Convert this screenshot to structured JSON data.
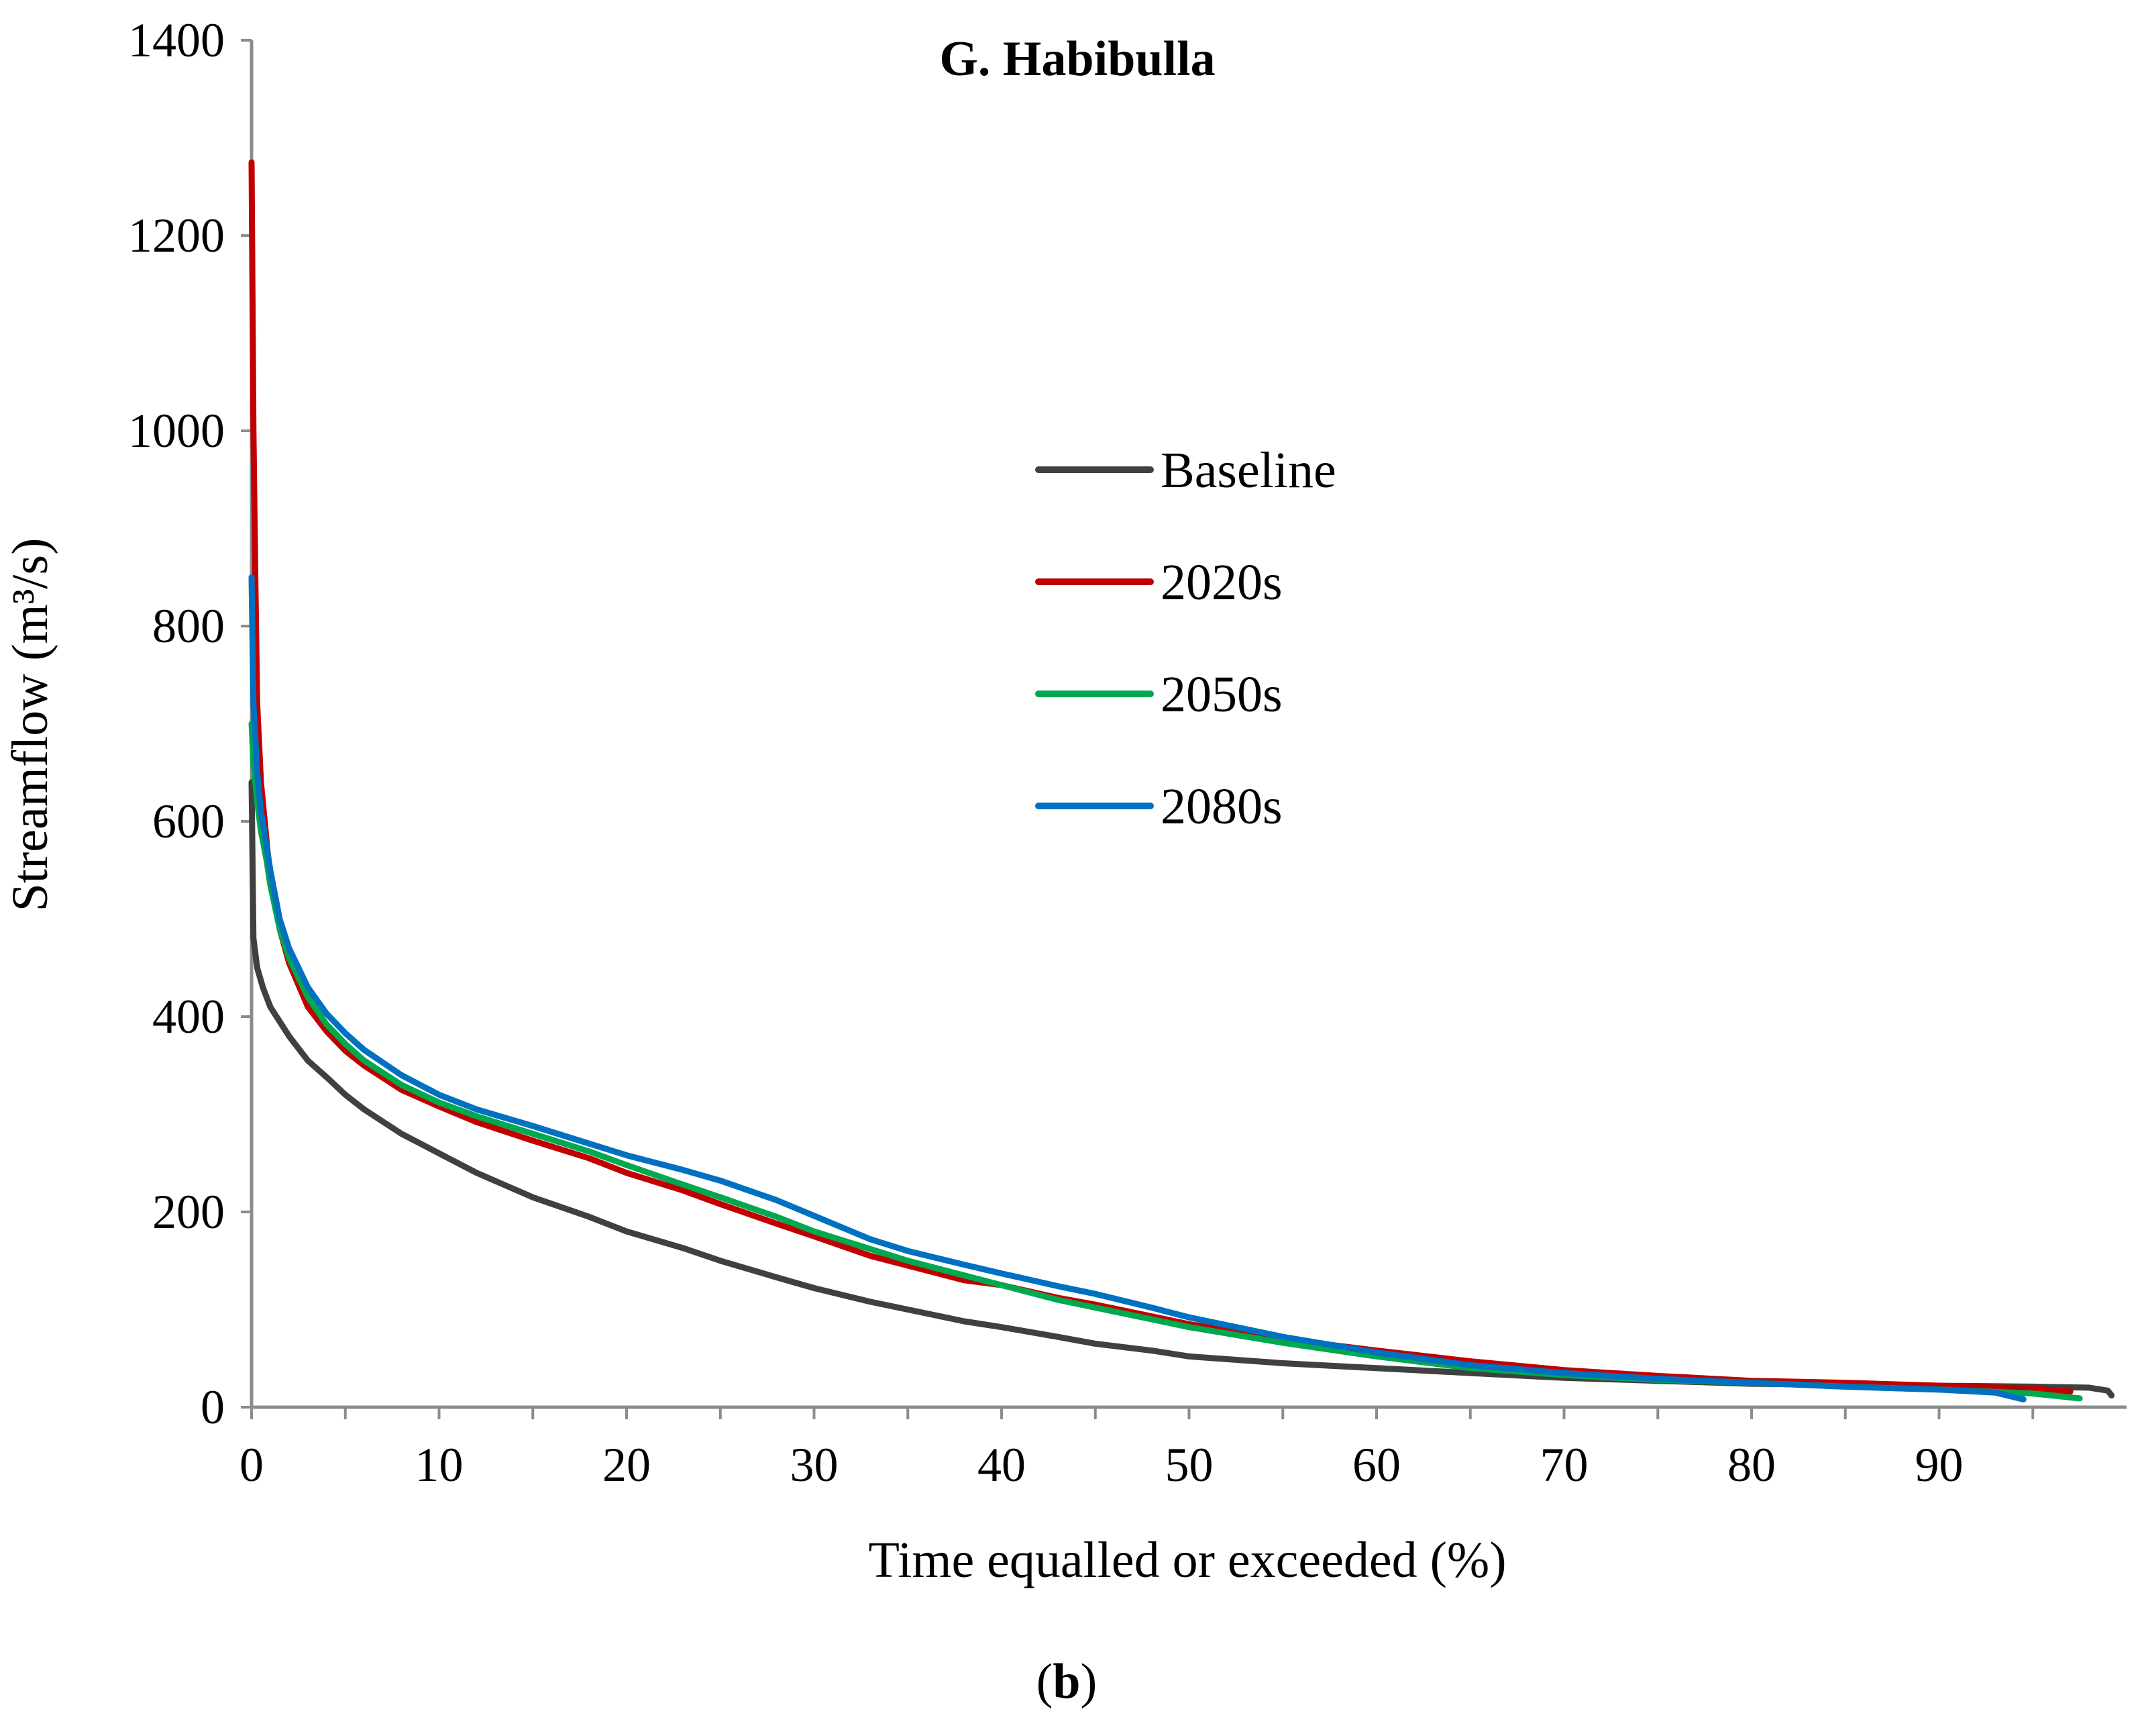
{
  "chart_data": {
    "type": "line",
    "title": "G. Habibulla",
    "xlabel": "Time equalled or exceeded (%)",
    "ylabel": "Streamflow (m³/s)",
    "panel_label_prefix": "(",
    "panel_label": "b",
    "panel_label_suffix": ")",
    "xlim": [
      0,
      100
    ],
    "ylim": [
      0,
      1400
    ],
    "xticks": [
      0,
      10,
      20,
      30,
      40,
      50,
      60,
      70,
      80,
      90
    ],
    "xticks_minor": [
      5,
      15,
      25,
      35,
      45,
      55,
      65,
      75,
      85,
      95
    ],
    "yticks": [
      0,
      200,
      400,
      600,
      800,
      1000,
      1200,
      1400
    ],
    "grid": false,
    "legend_position": "center-right",
    "series": [
      {
        "name": "Baseline",
        "color": "#404040",
        "x": [
          0,
          0.1,
          0.3,
          0.6,
          1,
          1.5,
          2,
          3,
          4,
          5,
          6,
          8,
          10,
          12,
          15,
          18,
          20,
          23,
          25,
          28,
          30,
          33,
          35,
          38,
          40,
          43,
          45,
          48,
          50,
          55,
          60,
          65,
          70,
          75,
          80,
          85,
          90,
          95,
          98,
          99,
          99.2
        ],
        "values": [
          640,
          480,
          450,
          430,
          410,
          395,
          380,
          355,
          338,
          320,
          305,
          280,
          260,
          240,
          215,
          195,
          180,
          163,
          150,
          133,
          122,
          108,
          100,
          88,
          82,
          72,
          65,
          58,
          52,
          45,
          40,
          35,
          30,
          27,
          24,
          23,
          22,
          21,
          20,
          17,
          12
        ]
      },
      {
        "name": "2020s",
        "color": "#c00000",
        "x": [
          0,
          0.1,
          0.2,
          0.3,
          0.5,
          0.8,
          1,
          1.5,
          2,
          3,
          4,
          5,
          6,
          8,
          10,
          12,
          15,
          18,
          20,
          23,
          25,
          28,
          30,
          33,
          35,
          38,
          40,
          43,
          45,
          48,
          50,
          55,
          60,
          65,
          70,
          75,
          80,
          85,
          90,
          95,
          97
        ],
        "values": [
          1275,
          1000,
          850,
          720,
          640,
          580,
          540,
          490,
          455,
          410,
          385,
          365,
          350,
          325,
          308,
          292,
          273,
          255,
          240,
          222,
          208,
          188,
          175,
          155,
          145,
          130,
          125,
          112,
          105,
          93,
          85,
          70,
          58,
          47,
          38,
          32,
          27,
          25,
          22,
          19,
          16
        ]
      },
      {
        "name": "2050s",
        "color": "#00a84f",
        "x": [
          0,
          0.1,
          0.3,
          0.5,
          0.8,
          1,
          1.5,
          2,
          3,
          4,
          5,
          6,
          8,
          10,
          12,
          15,
          18,
          20,
          23,
          25,
          28,
          30,
          33,
          35,
          38,
          40,
          43,
          45,
          48,
          50,
          55,
          60,
          65,
          70,
          75,
          80,
          85,
          90,
          95,
          97.5
        ],
        "values": [
          700,
          660,
          620,
          590,
          560,
          535,
          490,
          460,
          420,
          392,
          372,
          355,
          330,
          312,
          298,
          280,
          262,
          248,
          228,
          215,
          195,
          180,
          162,
          150,
          135,
          125,
          110,
          102,
          90,
          82,
          66,
          52,
          40,
          33,
          28,
          25,
          21,
          18,
          14,
          9
        ]
      },
      {
        "name": "2080s",
        "color": "#0070c0",
        "x": [
          0,
          0.1,
          0.3,
          0.5,
          0.8,
          1,
          1.5,
          2,
          3,
          4,
          5,
          6,
          8,
          10,
          12,
          15,
          18,
          20,
          23,
          25,
          28,
          30,
          33,
          35,
          38,
          40,
          43,
          45,
          48,
          50,
          55,
          60,
          65,
          70,
          75,
          80,
          85,
          90,
          93,
          94.5
        ],
        "values": [
          850,
          720,
          650,
          610,
          575,
          550,
          500,
          470,
          430,
          403,
          383,
          366,
          340,
          320,
          305,
          288,
          270,
          258,
          243,
          232,
          212,
          196,
          172,
          160,
          146,
          137,
          124,
          116,
          102,
          92,
          72,
          56,
          43,
          35,
          29,
          25,
          21,
          18,
          15,
          8
        ]
      }
    ]
  }
}
